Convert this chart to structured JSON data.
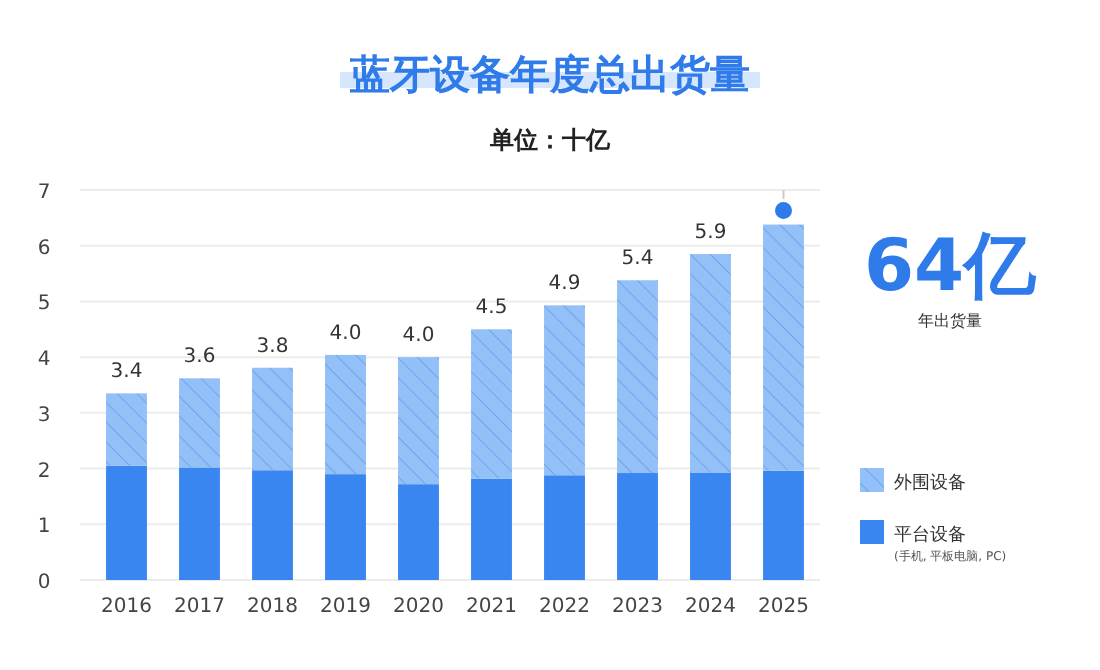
{
  "chart_data": {
    "type": "bar",
    "title": "蓝牙设备年度总出货量",
    "subtitle": "单位：十亿",
    "categories": [
      "2016",
      "2017",
      "2018",
      "2019",
      "2020",
      "2021",
      "2022",
      "2023",
      "2024",
      "2025"
    ],
    "series": [
      {
        "name": "平台设备",
        "color": "#3a86f0",
        "values": [
          2.05,
          2.02,
          1.97,
          1.9,
          1.72,
          1.82,
          1.88,
          1.92,
          1.93,
          1.96
        ]
      },
      {
        "name": "外围设备",
        "color": "#93c0f7",
        "values": [
          1.3,
          1.6,
          1.84,
          2.14,
          2.28,
          2.68,
          3.05,
          3.46,
          3.92,
          4.42
        ]
      }
    ],
    "stacked": true,
    "totals": [
      "3.4",
      "3.6",
      "3.8",
      "4.0",
      "4.0",
      "4.5",
      "4.9",
      "5.4",
      "5.9",
      null
    ],
    "ylim": [
      0,
      7
    ],
    "yticks": [
      0,
      1,
      2,
      3,
      4,
      5,
      6,
      7
    ],
    "grid": "y",
    "legend": "bottom right",
    "annotations": [
      {
        "text": "64亿",
        "x": "2025",
        "y": 6.38
      },
      "年出货量",
      "(手机, 平板电脑, PC)"
    ]
  }
}
